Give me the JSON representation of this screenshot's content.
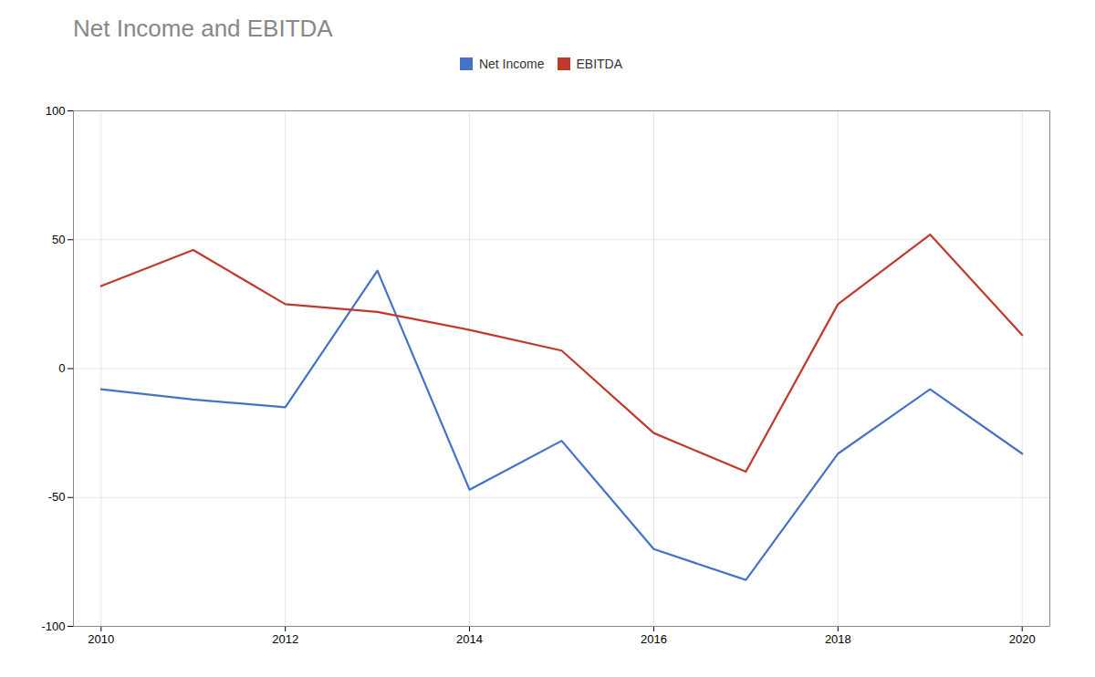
{
  "chart_data": {
    "type": "line",
    "title": "Net Income and EBITDA",
    "x": [
      2010,
      2011,
      2012,
      2013,
      2014,
      2015,
      2016,
      2017,
      2018,
      2019,
      2020
    ],
    "series": [
      {
        "name": "Net Income",
        "color": "#4472C4",
        "values": [
          -8,
          -12,
          -15,
          38,
          -47,
          -28,
          -70,
          -82,
          -33,
          -8,
          -33
        ]
      },
      {
        "name": "EBITDA",
        "color": "#C0392B",
        "values": [
          32,
          46,
          25,
          22,
          15,
          7,
          -25,
          -40,
          25,
          52,
          13
        ]
      }
    ],
    "xlim": [
      2009.7,
      2020.3
    ],
    "xticks": [
      2010,
      2012,
      2014,
      2016,
      2018,
      2020
    ],
    "ylim": [
      -100,
      100
    ],
    "yticks": [
      -100,
      -50,
      0,
      50,
      100
    ],
    "grid": true,
    "legend": "top"
  }
}
